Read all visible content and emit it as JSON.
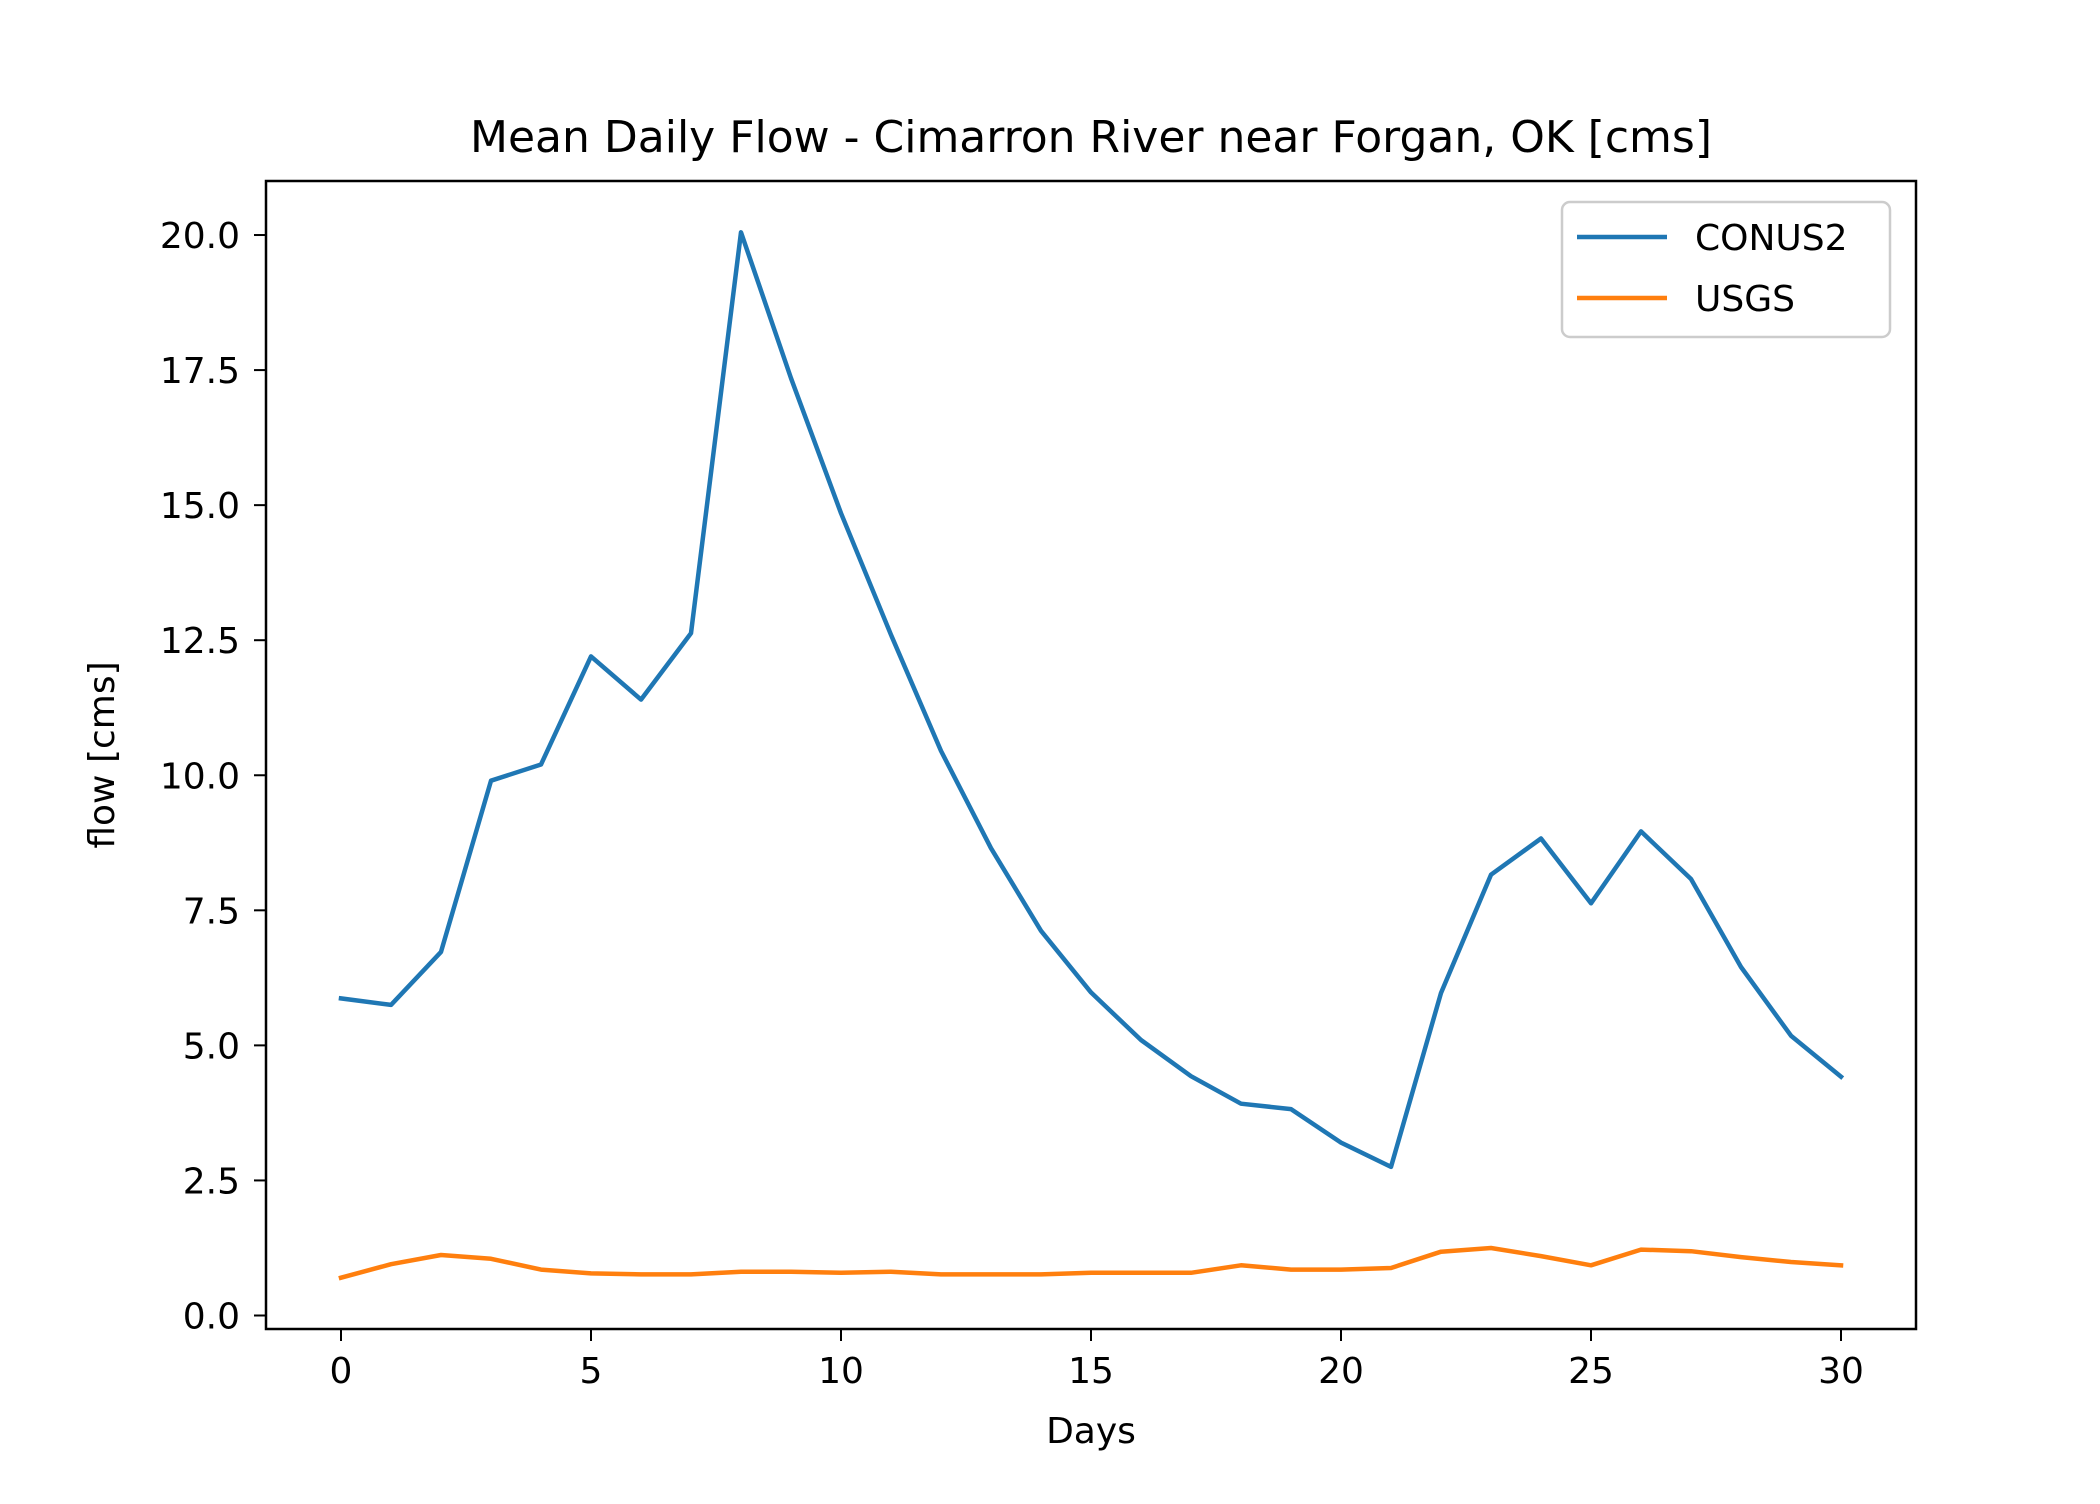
{
  "chart_data": {
    "type": "line",
    "title": "Mean Daily Flow - Cimarron River near Forgan, OK [cms]",
    "xlabel": "Days",
    "ylabel": "flow [cms]",
    "xlim": [
      -1.5,
      31.5
    ],
    "ylim": [
      -0.25,
      21.0
    ],
    "xticks": [
      0,
      5,
      10,
      15,
      20,
      25,
      30
    ],
    "xtick_labels": [
      "0",
      "5",
      "10",
      "15",
      "20",
      "25",
      "30"
    ],
    "yticks": [
      0,
      2.5,
      5,
      7.5,
      10,
      12.5,
      15,
      17.5,
      20
    ],
    "ytick_labels": [
      "0.0",
      "2.5",
      "5.0",
      "7.5",
      "10.0",
      "12.5",
      "15.0",
      "17.5",
      "20.0"
    ],
    "grid": false,
    "legend_position": "top-right",
    "x": [
      0,
      1,
      2,
      3,
      4,
      5,
      6,
      7,
      8,
      9,
      10,
      11,
      12,
      13,
      14,
      15,
      16,
      17,
      18,
      19,
      20,
      21,
      22,
      23,
      24,
      25,
      26,
      27,
      28,
      29,
      30
    ],
    "series": [
      {
        "name": "CONUS2",
        "color": "#1f77b4",
        "values": [
          5.87,
          5.75,
          6.73,
          9.9,
          10.2,
          12.2,
          11.4,
          12.63,
          20.05,
          17.35,
          14.85,
          12.6,
          10.45,
          8.65,
          7.12,
          5.98,
          5.1,
          4.43,
          3.92,
          3.82,
          3.2,
          2.75,
          5.97,
          8.16,
          8.83,
          7.63,
          8.96,
          8.08,
          6.45,
          5.18,
          4.42
        ]
      },
      {
        "name": "USGS",
        "color": "#ff7f0e",
        "values": [
          0.7,
          0.95,
          1.12,
          1.05,
          0.85,
          0.78,
          0.76,
          0.76,
          0.81,
          0.81,
          0.79,
          0.81,
          0.76,
          0.76,
          0.76,
          0.79,
          0.79,
          0.79,
          0.93,
          0.85,
          0.85,
          0.88,
          1.18,
          1.25,
          1.1,
          0.93,
          1.22,
          1.19,
          1.08,
          0.99,
          0.93
        ]
      }
    ]
  }
}
